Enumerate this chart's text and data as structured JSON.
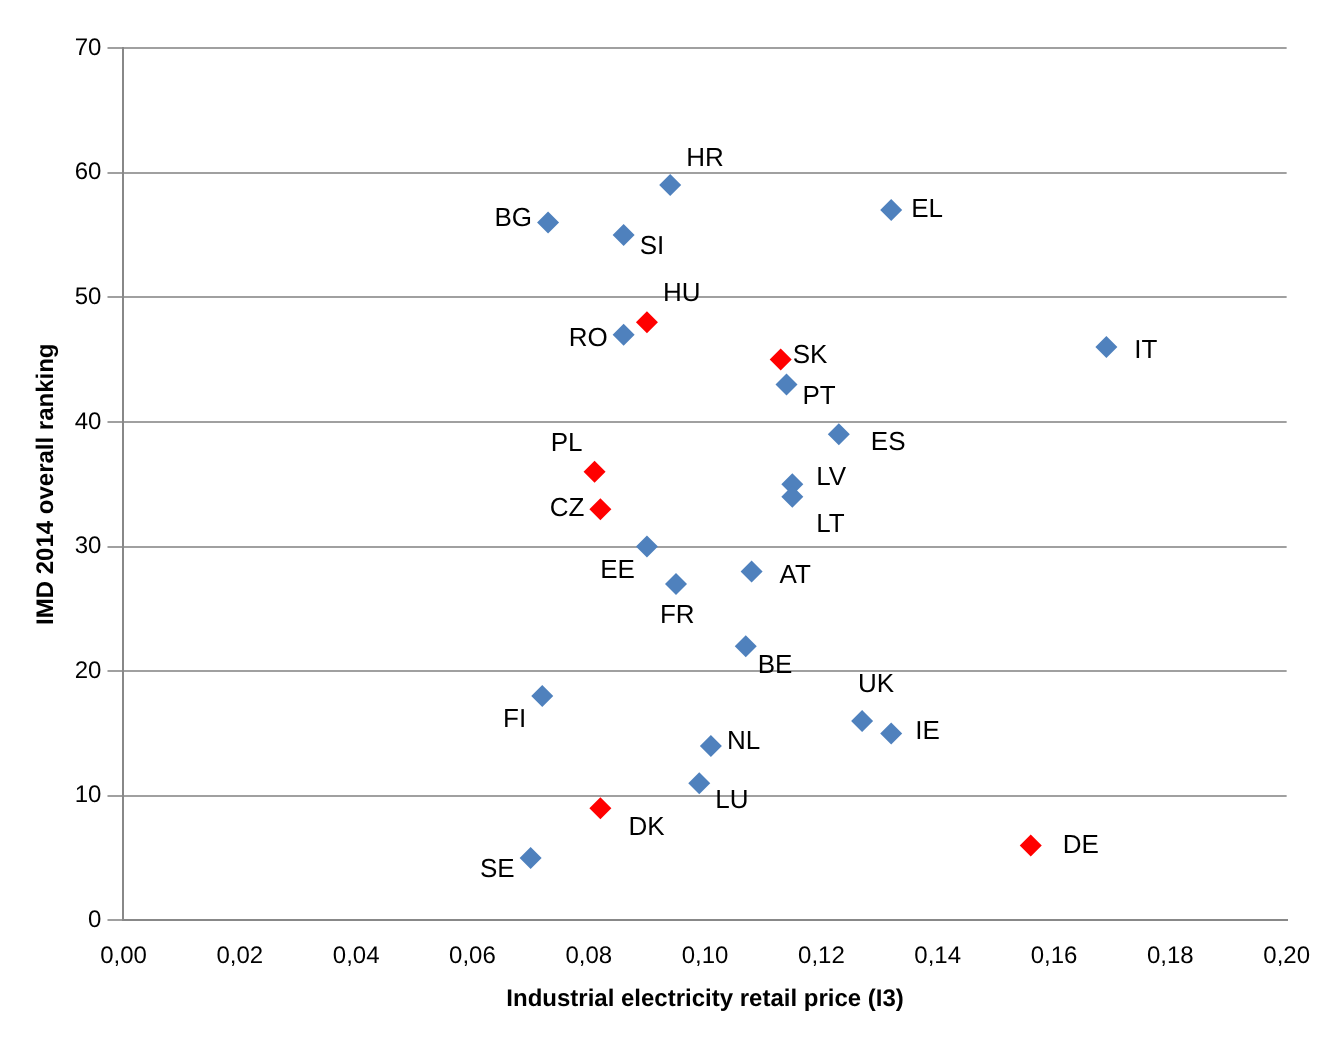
{
  "chart_data": {
    "type": "scatter",
    "xlabel": "Industrial electricity retail price (I3)",
    "ylabel": "IMD 2014 overall ranking",
    "series": [
      {
        "color": "#4f81bd",
        "x": [
          0.094,
          0.132,
          0.073,
          0.086,
          0.086,
          0.114,
          0.169,
          0.123,
          0.115,
          0.115,
          0.09,
          0.108,
          0.095,
          0.107,
          0.072,
          0.127,
          0.132,
          0.101,
          0.099,
          0.07
        ],
        "values": [
          59,
          57,
          56,
          55,
          47,
          43,
          46,
          39,
          35,
          34,
          30,
          28,
          27,
          22,
          18,
          16,
          15,
          14,
          11,
          5
        ]
      },
      {
        "color": "#ff0000",
        "x": [
          0.09,
          0.113,
          0.081,
          0.082,
          0.082,
          0.156
        ],
        "values": [
          48,
          45,
          36,
          33,
          9,
          6
        ]
      }
    ],
    "annotations": [
      {
        "text": "HR",
        "x": 0.094,
        "y": 59
      },
      {
        "text": "EL",
        "x": 0.132,
        "y": 57
      },
      {
        "text": "BG",
        "x": 0.073,
        "y": 56
      },
      {
        "text": "SI",
        "x": 0.086,
        "y": 55
      },
      {
        "text": "RO",
        "x": 0.086,
        "y": 47
      },
      {
        "text": "PT",
        "x": 0.114,
        "y": 43
      },
      {
        "text": "IT",
        "x": 0.169,
        "y": 46
      },
      {
        "text": "ES",
        "x": 0.123,
        "y": 39
      },
      {
        "text": "LV",
        "x": 0.115,
        "y": 35
      },
      {
        "text": "LT",
        "x": 0.115,
        "y": 34
      },
      {
        "text": "EE",
        "x": 0.09,
        "y": 30
      },
      {
        "text": "AT",
        "x": 0.108,
        "y": 28
      },
      {
        "text": "FR",
        "x": 0.095,
        "y": 27
      },
      {
        "text": "BE",
        "x": 0.107,
        "y": 22
      },
      {
        "text": "FI",
        "x": 0.072,
        "y": 18
      },
      {
        "text": "UK",
        "x": 0.127,
        "y": 16
      },
      {
        "text": "IE",
        "x": 0.132,
        "y": 15
      },
      {
        "text": "NL",
        "x": 0.101,
        "y": 14
      },
      {
        "text": "LU",
        "x": 0.099,
        "y": 11
      },
      {
        "text": "SE",
        "x": 0.07,
        "y": 5
      },
      {
        "text": "HU",
        "x": 0.09,
        "y": 48
      },
      {
        "text": "SK",
        "x": 0.113,
        "y": 45
      },
      {
        "text": "PL",
        "x": 0.081,
        "y": 36
      },
      {
        "text": "CZ",
        "x": 0.082,
        "y": 33
      },
      {
        "text": "DK",
        "x": 0.082,
        "y": 9
      },
      {
        "text": "DE",
        "x": 0.156,
        "y": 6
      }
    ],
    "xlim": [
      0,
      0.2
    ],
    "xticks": [
      {
        "value": 0,
        "label": "0,00"
      },
      {
        "value": 0.02,
        "label": "0,02"
      },
      {
        "value": 0.04,
        "label": "0,04"
      },
      {
        "value": 0.06,
        "label": "0,06"
      },
      {
        "value": 0.08,
        "label": "0,08"
      },
      {
        "value": 0.1,
        "label": "0,10"
      },
      {
        "value": 0.12,
        "label": "0,12"
      },
      {
        "value": 0.14,
        "label": "0,14"
      },
      {
        "value": 0.16,
        "label": "0,16"
      },
      {
        "value": 0.18,
        "label": "0,18"
      },
      {
        "value": 0.2,
        "label": "0,20"
      }
    ],
    "ylim": [
      0,
      70
    ],
    "yticks": [
      0,
      10,
      20,
      30,
      40,
      50,
      60,
      70
    ],
    "grid": "y",
    "legend": false,
    "marker": "diamond"
  }
}
